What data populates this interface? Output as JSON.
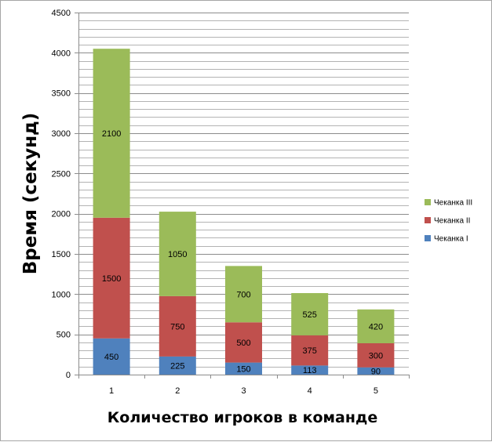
{
  "chart_data": {
    "type": "stacked-bar",
    "categories": [
      "1",
      "2",
      "3",
      "4",
      "5"
    ],
    "series": [
      {
        "name": "Чеканка I",
        "color": "#4f81bd",
        "values": [
          450,
          225,
          150,
          113,
          90
        ]
      },
      {
        "name": "Чеканка II",
        "color": "#c0504d",
        "values": [
          1500,
          750,
          500,
          375,
          300
        ]
      },
      {
        "name": "Чеканка III",
        "color": "#9bbb59",
        "values": [
          2100,
          1050,
          700,
          525,
          420
        ]
      }
    ],
    "xlabel": "Количество игроков в команде",
    "ylabel": "Время (секунд)",
    "ylim": [
      0,
      4500
    ],
    "y_ticks": [
      0,
      500,
      1000,
      1500,
      2000,
      2500,
      3000,
      3500,
      4000,
      4500
    ],
    "grid": true,
    "legend_position": "right"
  }
}
